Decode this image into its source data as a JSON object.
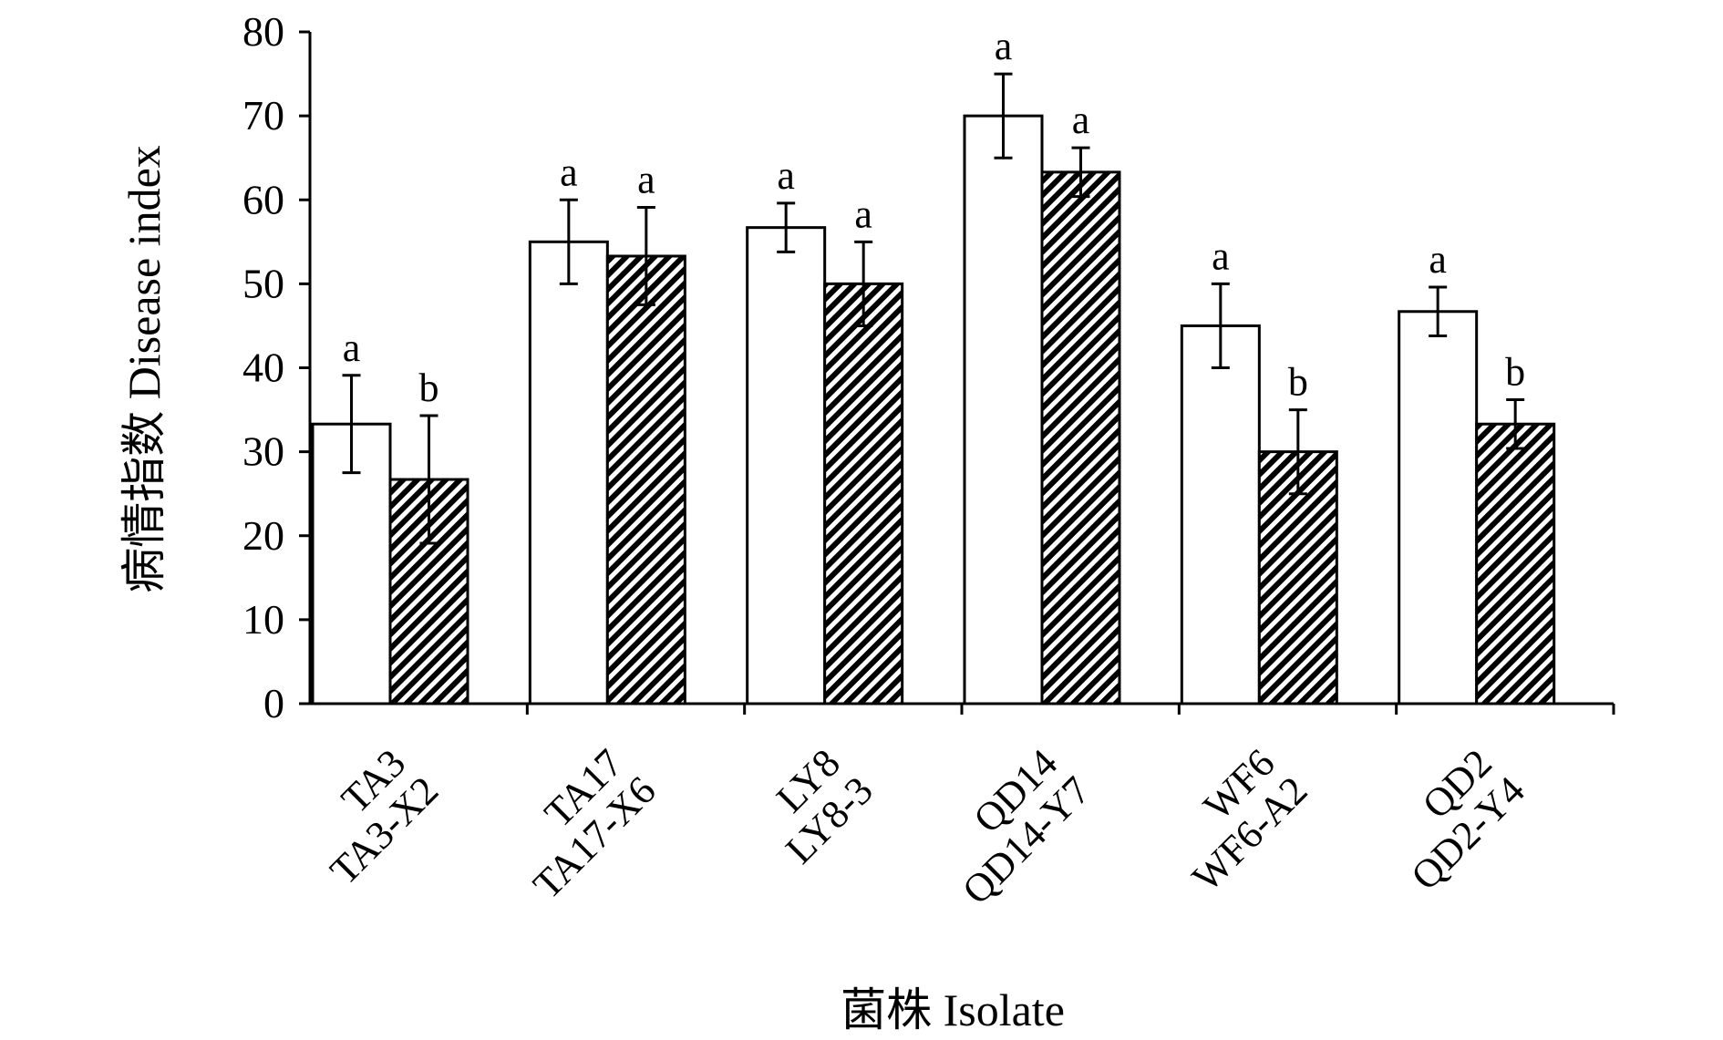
{
  "chart_data": {
    "type": "bar",
    "xlabel": "菌株 Isolate",
    "ylabel": "病情指数 Disease index",
    "ylim": [
      0,
      80
    ],
    "yticks": [
      0,
      10,
      20,
      30,
      40,
      50,
      60,
      70,
      80
    ],
    "grid": false,
    "legend": "none",
    "groups": [
      {
        "bars": [
          {
            "label": "TA3",
            "value": 33.3,
            "error": 5.8,
            "sig": "a",
            "style": "open"
          },
          {
            "label": "TA3-X2",
            "value": 26.7,
            "error": 7.6,
            "sig": "b",
            "style": "hatched"
          }
        ]
      },
      {
        "bars": [
          {
            "label": "TA17",
            "value": 55.0,
            "error": 5.0,
            "sig": "a",
            "style": "open"
          },
          {
            "label": "TA17-X6",
            "value": 53.3,
            "error": 5.8,
            "sig": "a",
            "style": "hatched"
          }
        ]
      },
      {
        "bars": [
          {
            "label": "LY8",
            "value": 56.7,
            "error": 2.9,
            "sig": "a",
            "style": "open"
          },
          {
            "label": "LY8-3",
            "value": 50.0,
            "error": 5.0,
            "sig": "a",
            "style": "hatched"
          }
        ]
      },
      {
        "bars": [
          {
            "label": "QD14",
            "value": 70.0,
            "error": 5.0,
            "sig": "a",
            "style": "open"
          },
          {
            "label": "QD14-Y7",
            "value": 63.3,
            "error": 2.9,
            "sig": "a",
            "style": "hatched"
          }
        ]
      },
      {
        "bars": [
          {
            "label": "WF6",
            "value": 45.0,
            "error": 5.0,
            "sig": "a",
            "style": "open"
          },
          {
            "label": "WF6-A2",
            "value": 30.0,
            "error": 5.0,
            "sig": "b",
            "style": "hatched"
          }
        ]
      },
      {
        "bars": [
          {
            "label": "QD2",
            "value": 46.7,
            "error": 2.9,
            "sig": "a",
            "style": "open"
          },
          {
            "label": "QD2-Y4",
            "value": 33.3,
            "error": 2.9,
            "sig": "b",
            "style": "hatched"
          }
        ]
      }
    ]
  }
}
